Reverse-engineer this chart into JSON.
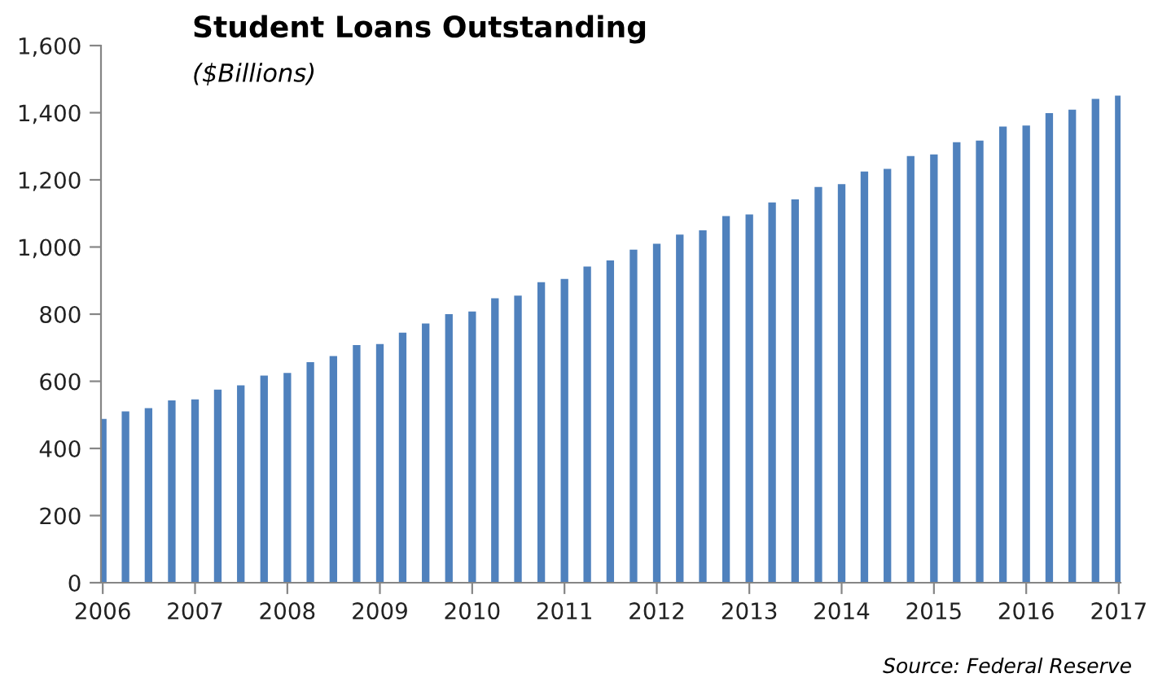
{
  "chart_data": {
    "type": "bar",
    "title": "Student Loans Outstanding",
    "subtitle": "($Billions)",
    "annotations": [
      "Source: Federal Reserve"
    ],
    "x": [
      "2006-01",
      "2006-04",
      "2006-07",
      "2006-10",
      "2007-01",
      "2007-04",
      "2007-07",
      "2007-10",
      "2008-01",
      "2008-04",
      "2008-07",
      "2008-10",
      "2009-01",
      "2009-04",
      "2009-07",
      "2009-10",
      "2010-01",
      "2010-04",
      "2010-07",
      "2010-10",
      "2011-01",
      "2011-04",
      "2011-07",
      "2011-10",
      "2012-01",
      "2012-04",
      "2012-07",
      "2012-10",
      "2013-01",
      "2013-04",
      "2013-07",
      "2013-10",
      "2014-01",
      "2014-04",
      "2014-07",
      "2014-10",
      "2015-01",
      "2015-04",
      "2015-07",
      "2015-10",
      "2016-01",
      "2016-04",
      "2016-07",
      "2016-10",
      "2017-01"
    ],
    "values": [
      488,
      510,
      520,
      543,
      546,
      575,
      588,
      617,
      625,
      657,
      675,
      708,
      711,
      745,
      772,
      800,
      808,
      847,
      855,
      895,
      905,
      942,
      960,
      992,
      1010,
      1037,
      1050,
      1092,
      1097,
      1133,
      1142,
      1179,
      1187,
      1225,
      1233,
      1271,
      1276,
      1312,
      1317,
      1359,
      1362,
      1399,
      1409,
      1441,
      1451
    ],
    "color": "#4f81bd",
    "xlim": [
      "2005-12-25",
      "2017-01-08"
    ],
    "xticks": [
      "2006",
      "2007",
      "2008",
      "2009",
      "2010",
      "2011",
      "2012",
      "2013",
      "2014",
      "2015",
      "2016",
      "2017"
    ],
    "ylim": [
      0,
      1600
    ],
    "yticks": [
      0,
      {
        "value": 200,
        "label": "200"
      },
      {
        "value": 400,
        "label": "400"
      },
      {
        "value": 600,
        "label": "600"
      },
      {
        "value": 800,
        "label": "800"
      },
      {
        "value": 1000,
        "label": "1,000"
      },
      {
        "value": 1200,
        "label": "1,200"
      },
      {
        "value": 1400,
        "label": "1,400"
      },
      {
        "value": 1600,
        "label": "1,600"
      }
    ],
    "grid": false,
    "legend": false
  }
}
